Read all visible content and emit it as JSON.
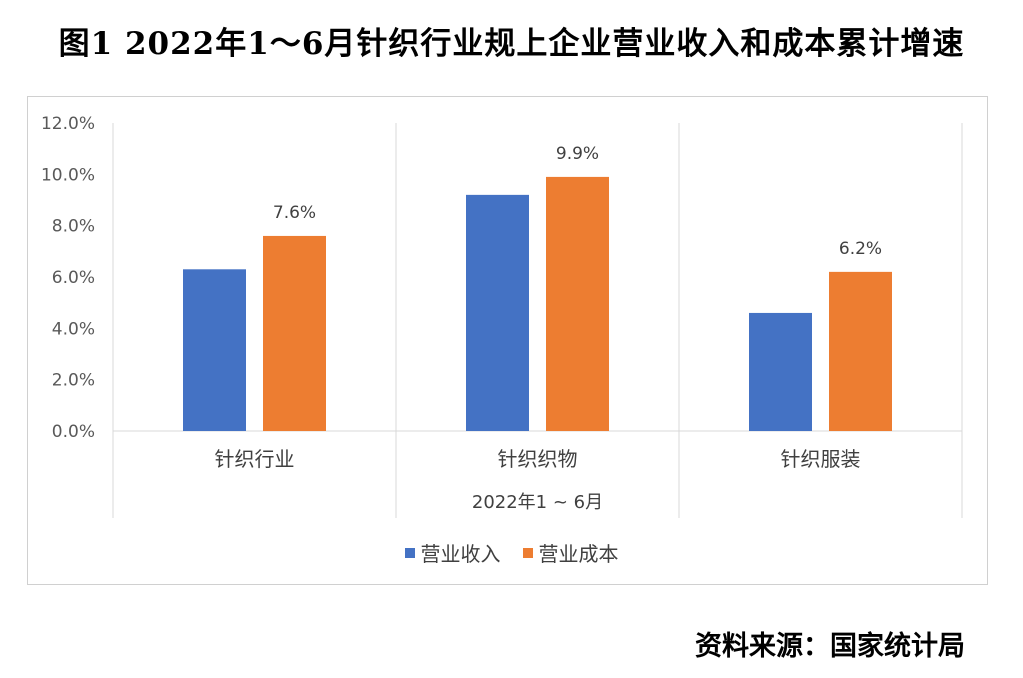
{
  "figure": {
    "title": "图1 2022年1～6月针织行业规上企业营业收入和成本累计增速",
    "source": "资料来源：国家统计局"
  },
  "chart_data": {
    "type": "bar",
    "categories": [
      "针织行业",
      "针织织物",
      "针织服装"
    ],
    "group_label": "2022年1 ~ 6月",
    "series": [
      {
        "name": "营业收入",
        "color": "#4472C4",
        "values": [
          6.3,
          9.2,
          4.6
        ]
      },
      {
        "name": "营业成本",
        "color": "#ED7D31",
        "values": [
          7.6,
          9.9,
          6.2
        ]
      }
    ],
    "data_labels": [
      {
        "series": 1,
        "category": 0,
        "text": "7.6%"
      },
      {
        "series": 1,
        "category": 1,
        "text": "9.9%"
      },
      {
        "series": 1,
        "category": 2,
        "text": "6.2%"
      }
    ],
    "ylim": [
      0,
      12
    ],
    "ytick_step": 2,
    "ytick_labels": [
      "0.0%",
      "2.0%",
      "4.0%",
      "6.0%",
      "8.0%",
      "10.0%",
      "12.0%"
    ],
    "grid": false,
    "legend_position": "bottom"
  }
}
